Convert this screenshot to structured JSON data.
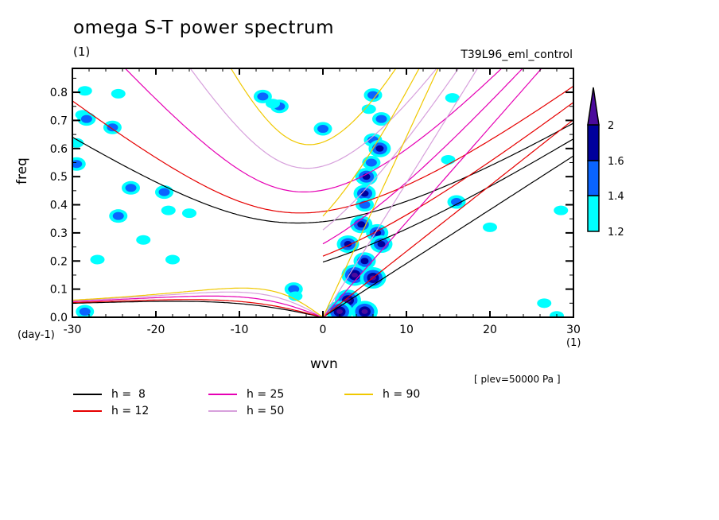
{
  "chart_data": {
    "type": "heatmap",
    "title": "omega S-T power spectrum",
    "subtitle_units": "(1)",
    "run_label": "T39L96_eml_control",
    "xlabel": "wvn",
    "x_units": "(1)",
    "ylabel": "freq",
    "y_units": "(day-1)",
    "annotation": "[ plev=50000 Pa ]",
    "xlim": [
      -30,
      30
    ],
    "ylim": [
      0,
      0.885
    ],
    "xticks": [
      -30,
      -20,
      -10,
      0,
      10,
      20,
      30
    ],
    "xtick_labels": [
      "-30",
      "-20",
      "-10",
      "0",
      "10",
      "20",
      "30"
    ],
    "yticks": [
      0.0,
      0.1,
      0.2,
      0.3,
      0.4,
      0.5,
      0.6,
      0.7,
      0.8
    ],
    "ytick_labels": [
      "0.0",
      "0.1",
      "0.2",
      "0.3",
      "0.4",
      "0.5",
      "0.6",
      "0.7",
      "0.8"
    ],
    "colorbar": {
      "levels": [
        1.2,
        1.4,
        1.6,
        2
      ],
      "labels": [
        "1.2",
        "1.4",
        "1.6",
        "2"
      ],
      "colors": [
        "#00ffff",
        "#0a64ff",
        "#00009c",
        "#4b0a9c"
      ],
      "extend": "max"
    },
    "dispersion_curves": [
      {
        "label": "h =  8",
        "h": 8,
        "color": "#000000"
      },
      {
        "label": "h = 12",
        "h": 12,
        "color": "#e60000"
      },
      {
        "label": "h = 25",
        "h": 25,
        "color": "#e600b4"
      },
      {
        "label": "h = 50",
        "h": 50,
        "color": "#d7a0dc"
      },
      {
        "label": "h = 90",
        "h": 90,
        "color": "#f0c800"
      }
    ],
    "blobs": [
      {
        "k": -28.5,
        "f": 0.805,
        "level": 1
      },
      {
        "k": -24.5,
        "f": 0.795,
        "level": 1
      },
      {
        "k": -25.2,
        "f": 0.675,
        "level": 2
      },
      {
        "k": -28.8,
        "f": 0.72,
        "level": 1
      },
      {
        "k": -28.3,
        "f": 0.705,
        "level": 2
      },
      {
        "k": -29.5,
        "f": 0.62,
        "level": 1
      },
      {
        "k": -29.5,
        "f": 0.545,
        "level": 2
      },
      {
        "k": -23.0,
        "f": 0.46,
        "level": 2
      },
      {
        "k": -19.0,
        "f": 0.445,
        "level": 2
      },
      {
        "k": -24.5,
        "f": 0.36,
        "level": 2
      },
      {
        "k": -18.5,
        "f": 0.38,
        "level": 1
      },
      {
        "k": -16.0,
        "f": 0.37,
        "level": 1
      },
      {
        "k": -21.5,
        "f": 0.275,
        "level": 1
      },
      {
        "k": -27.0,
        "f": 0.205,
        "level": 1
      },
      {
        "k": -18.0,
        "f": 0.205,
        "level": 1
      },
      {
        "k": -7.2,
        "f": 0.785,
        "level": 2
      },
      {
        "k": -5.2,
        "f": 0.75,
        "level": 2
      },
      {
        "k": -6.0,
        "f": 0.76,
        "level": 1
      },
      {
        "k": 0.0,
        "f": 0.67,
        "level": 2
      },
      {
        "k": -3.5,
        "f": 0.1,
        "level": 2
      },
      {
        "k": -3.3,
        "f": 0.075,
        "level": 1
      },
      {
        "k": -28.5,
        "f": 0.02,
        "level": 2
      },
      {
        "k": 6.0,
        "f": 0.79,
        "level": 2
      },
      {
        "k": 5.5,
        "f": 0.74,
        "level": 1
      },
      {
        "k": 7.0,
        "f": 0.705,
        "level": 2
      },
      {
        "k": 6.0,
        "f": 0.63,
        "level": 2
      },
      {
        "k": 6.8,
        "f": 0.6,
        "level": 3
      },
      {
        "k": 5.8,
        "f": 0.55,
        "level": 2
      },
      {
        "k": 5.2,
        "f": 0.5,
        "level": 3
      },
      {
        "k": 5.0,
        "f": 0.44,
        "level": 3
      },
      {
        "k": 5.0,
        "f": 0.4,
        "level": 2
      },
      {
        "k": 4.6,
        "f": 0.33,
        "level": 3
      },
      {
        "k": 6.5,
        "f": 0.3,
        "level": 3
      },
      {
        "k": 3.0,
        "f": 0.26,
        "level": 3
      },
      {
        "k": 7.0,
        "f": 0.26,
        "level": 3
      },
      {
        "k": 5.0,
        "f": 0.2,
        "level": 3
      },
      {
        "k": 3.8,
        "f": 0.15,
        "level": 4
      },
      {
        "k": 6.0,
        "f": 0.14,
        "level": 4
      },
      {
        "k": 3.0,
        "f": 0.06,
        "level": 4
      },
      {
        "k": 2.0,
        "f": 0.02,
        "level": 4
      },
      {
        "k": 5.0,
        "f": 0.02,
        "level": 4
      },
      {
        "k": 15.5,
        "f": 0.78,
        "level": 1
      },
      {
        "k": 15.0,
        "f": 0.56,
        "level": 1
      },
      {
        "k": 16.0,
        "f": 0.41,
        "level": 2
      },
      {
        "k": 20.0,
        "f": 0.32,
        "level": 1
      },
      {
        "k": 28.5,
        "f": 0.38,
        "level": 1
      },
      {
        "k": 26.5,
        "f": 0.05,
        "level": 1
      },
      {
        "k": 28.0,
        "f": 0.005,
        "level": 1
      }
    ]
  }
}
